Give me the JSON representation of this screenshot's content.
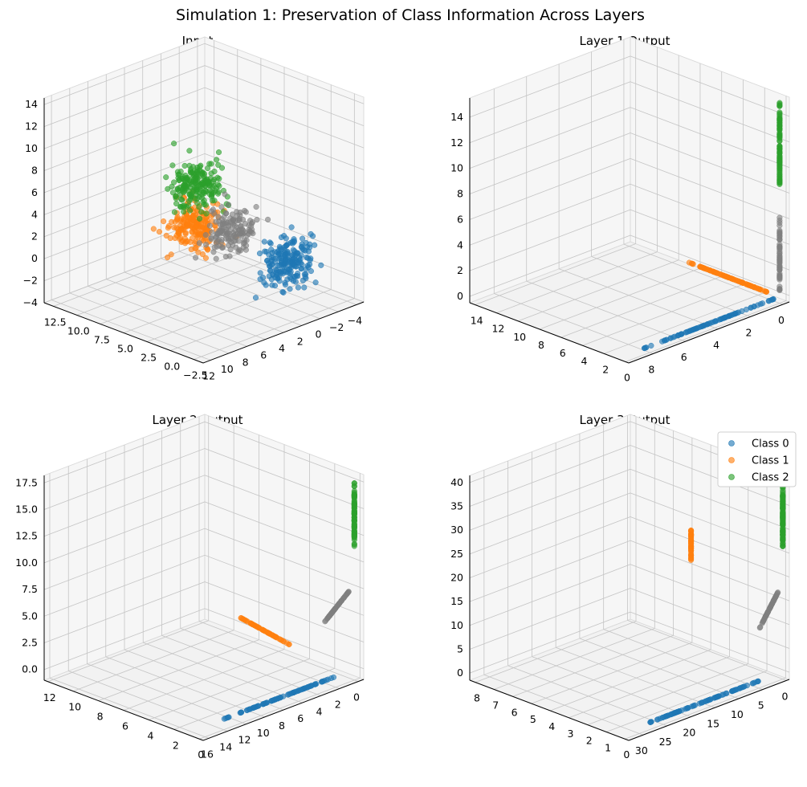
{
  "suptitle": "Simulation 1: Preservation of Class Information Across Layers",
  "legend": {
    "entries": [
      {
        "label": "Class 0",
        "color": "#1f77b4"
      },
      {
        "label": "Class 1",
        "color": "#ff7f0e"
      },
      {
        "label": "Class 2",
        "color": "#2ca02c"
      }
    ],
    "location": "top-right of last subplot"
  },
  "chart_data": [
    {
      "type": "scatter",
      "title": "Input",
      "view": "3d",
      "x_ticks": [
        "−2.5",
        "0.0",
        "2.5",
        "5.0",
        "7.5",
        "10.0",
        "12.5"
      ],
      "y_ticks": [
        "12",
        "10",
        "8",
        "6",
        "4",
        "2",
        "0",
        "−2",
        "−4"
      ],
      "z_ticks": [
        "−4",
        "−2",
        "0",
        "2",
        "4",
        "6",
        "8",
        "10",
        "12",
        "14"
      ],
      "xlim": [
        -3.5,
        13.5
      ],
      "ylim": [
        -4.8,
        12.8
      ],
      "zlim": [
        -4,
        14.6
      ],
      "series": [
        {
          "name": "Class 0",
          "color": "#1f77b4",
          "center": [
            0,
            0,
            0
          ],
          "spread": [
            1,
            1,
            1
          ],
          "n": 200
        },
        {
          "name": "Class 1",
          "color": "#ff7f0e",
          "center": [
            10,
            0,
            0
          ],
          "spread": [
            1,
            1,
            1
          ],
          "n": 200
        },
        {
          "name": "Class 2",
          "color": "#2ca02c",
          "center": [
            0,
            10,
            10
          ],
          "spread": [
            1,
            1,
            1
          ],
          "n": 200
        },
        {
          "name": "",
          "color": "#7f7f7f",
          "center": [
            3,
            3,
            3
          ],
          "spread": [
            1,
            1,
            1
          ],
          "n": 150
        }
      ]
    },
    {
      "type": "scatter",
      "title": "Layer 1 Output",
      "view": "3d",
      "x_ticks": [
        "0",
        "2",
        "4",
        "6",
        "8",
        "10",
        "12",
        "14"
      ],
      "y_ticks": [
        "8",
        "6",
        "4",
        "2",
        "0"
      ],
      "z_ticks": [
        "0",
        "2",
        "4",
        "6",
        "8",
        "10",
        "12",
        "14"
      ],
      "xlim": [
        -0.3,
        14.5
      ],
      "ylim": [
        -0.4,
        9.5
      ],
      "zlim": [
        -0.5,
        15.5
      ],
      "series": [
        {
          "name": "Class 0",
          "color": "#1f77b4",
          "line_from": [
            0,
            0.3,
            0
          ],
          "line_to": [
            0,
            8.4,
            0
          ],
          "n": 90
        },
        {
          "name": "Class 1",
          "color": "#ff7f0e",
          "line_from": [
            1.2,
            0,
            0
          ],
          "line_to": [
            8.5,
            0,
            0
          ],
          "n": 90
        },
        {
          "name": "Class 2",
          "color": "#2ca02c",
          "line_from": [
            0,
            0,
            8.5
          ],
          "line_to": [
            0,
            0,
            15.2
          ],
          "n": 90
        },
        {
          "name": "",
          "color": "#7f7f7f",
          "line_from": [
            0,
            0,
            0.3
          ],
          "line_to": [
            0,
            0,
            6.2
          ],
          "n": 60
        }
      ]
    },
    {
      "type": "scatter",
      "title": "Layer 2 Output",
      "view": "3d",
      "x_ticks": [
        "0",
        "2",
        "4",
        "6",
        "8",
        "10",
        "12"
      ],
      "y_ticks": [
        "16",
        "14",
        "12",
        "10",
        "8",
        "6",
        "4",
        "2",
        "0"
      ],
      "z_ticks": [
        "0.0",
        "2.5",
        "5.0",
        "7.5",
        "10.0",
        "12.5",
        "15.0",
        "17.5"
      ],
      "xlim": [
        -0.3,
        12.3
      ],
      "ylim": [
        -0.6,
        16.6
      ],
      "zlim": [
        -1.0,
        18.2
      ],
      "series": [
        {
          "name": "Class 0",
          "color": "#1f77b4",
          "line_from": [
            0,
            2,
            0
          ],
          "line_to": [
            0,
            14,
            0
          ],
          "n": 90
        },
        {
          "name": "Class 1",
          "color": "#ff7f0e",
          "line_from": [
            5,
            0,
            0
          ],
          "line_to": [
            9,
            0,
            0.8
          ],
          "n": 60
        },
        {
          "name": "Class 2",
          "color": "#2ca02c",
          "line_from": [
            0,
            0,
            17.5
          ],
          "line_to": [
            0,
            0,
            11.5
          ],
          "n": 90
        },
        {
          "name": "",
          "color": "#7f7f7f",
          "line_from": [
            0,
            0.6,
            7.5
          ],
          "line_to": [
            0,
            3.2,
            5.5
          ],
          "n": 60
        }
      ]
    },
    {
      "type": "scatter",
      "title": "Layer 3 Output",
      "view": "3d",
      "x_ticks": [
        "0",
        "1",
        "2",
        "3",
        "4",
        "5",
        "6",
        "7",
        "8"
      ],
      "y_ticks": [
        "30",
        "25",
        "20",
        "15",
        "10",
        "5",
        "0"
      ],
      "z_ticks": [
        "0",
        "5",
        "10",
        "15",
        "20",
        "25",
        "30",
        "35",
        "40"
      ],
      "xlim": [
        -0.2,
        8.3
      ],
      "ylim": [
        -0.6,
        33
      ],
      "zlim": [
        -1.5,
        41.5
      ],
      "series": [
        {
          "name": "Class 0",
          "color": "#1f77b4",
          "line_from": [
            0,
            5,
            0
          ],
          "line_to": [
            0,
            28,
            0
          ],
          "n": 90
        },
        {
          "name": "Class 1",
          "color": "#ff7f0e",
          "line_from": [
            4.9,
            0,
            16
          ],
          "line_to": [
            4.9,
            0,
            23
          ],
          "n": 50
        },
        {
          "name": "Class 2",
          "color": "#2ca02c",
          "line_from": [
            0,
            0,
            39
          ],
          "line_to": [
            0,
            0,
            26
          ],
          "n": 90
        },
        {
          "name": "",
          "color": "#7f7f7f",
          "line_from": [
            0.1,
            0.5,
            17
          ],
          "line_to": [
            0.2,
            4,
            10.5
          ],
          "n": 60
        }
      ]
    }
  ]
}
